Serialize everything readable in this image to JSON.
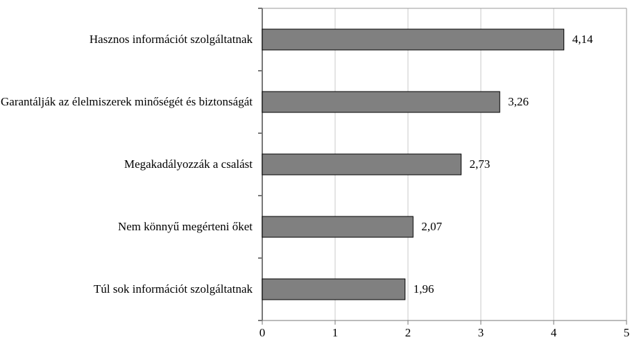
{
  "chart_data": {
    "type": "bar",
    "orientation": "horizontal",
    "categories": [
      "Hasznos információt szolgáltatnak",
      "Garantálják az élelmiszerek minőségét és biztonságát",
      "Megakadályozzák a csalást",
      "Nem könnyű megérteni őket",
      "Túl sok információt szolgáltatnak"
    ],
    "values": [
      4.14,
      3.26,
      2.73,
      2.07,
      1.96
    ],
    "value_labels": [
      "4,14",
      "3,26",
      "2,73",
      "2,07",
      "1,96"
    ],
    "color": "#808080",
    "xlim": [
      0,
      5
    ],
    "xticks": [
      0,
      1,
      2,
      3,
      4,
      5
    ],
    "grid": true
  }
}
